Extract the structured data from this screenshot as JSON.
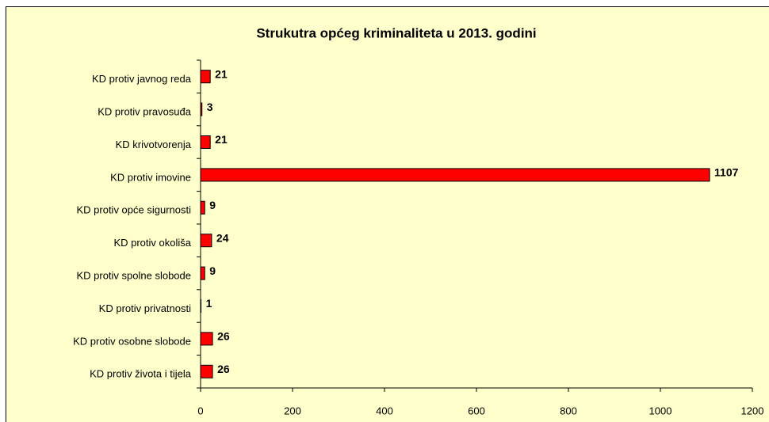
{
  "chart_data": {
    "type": "bar",
    "orientation": "horizontal",
    "title": "Strukutra općeg kriminaliteta u 2013. godini",
    "categories": [
      "KD protiv javnog reda",
      "KD protiv pravosuđa",
      "KD krivotvorenja",
      "KD protiv imovine",
      "KD protiv opće sigurnosti",
      "KD protiv okoliša",
      "KD protiv spolne slobode",
      "KD protiv privatnosti",
      "KD protiv osobne slobode",
      "KD protiv života i tijela"
    ],
    "values": [
      21,
      3,
      21,
      1107,
      9,
      24,
      9,
      1,
      26,
      26
    ],
    "color": "#ff0000",
    "xlim": [
      0,
      1200
    ],
    "xticks": [
      0,
      200,
      400,
      600,
      800,
      1000,
      1200
    ],
    "grid": false
  }
}
